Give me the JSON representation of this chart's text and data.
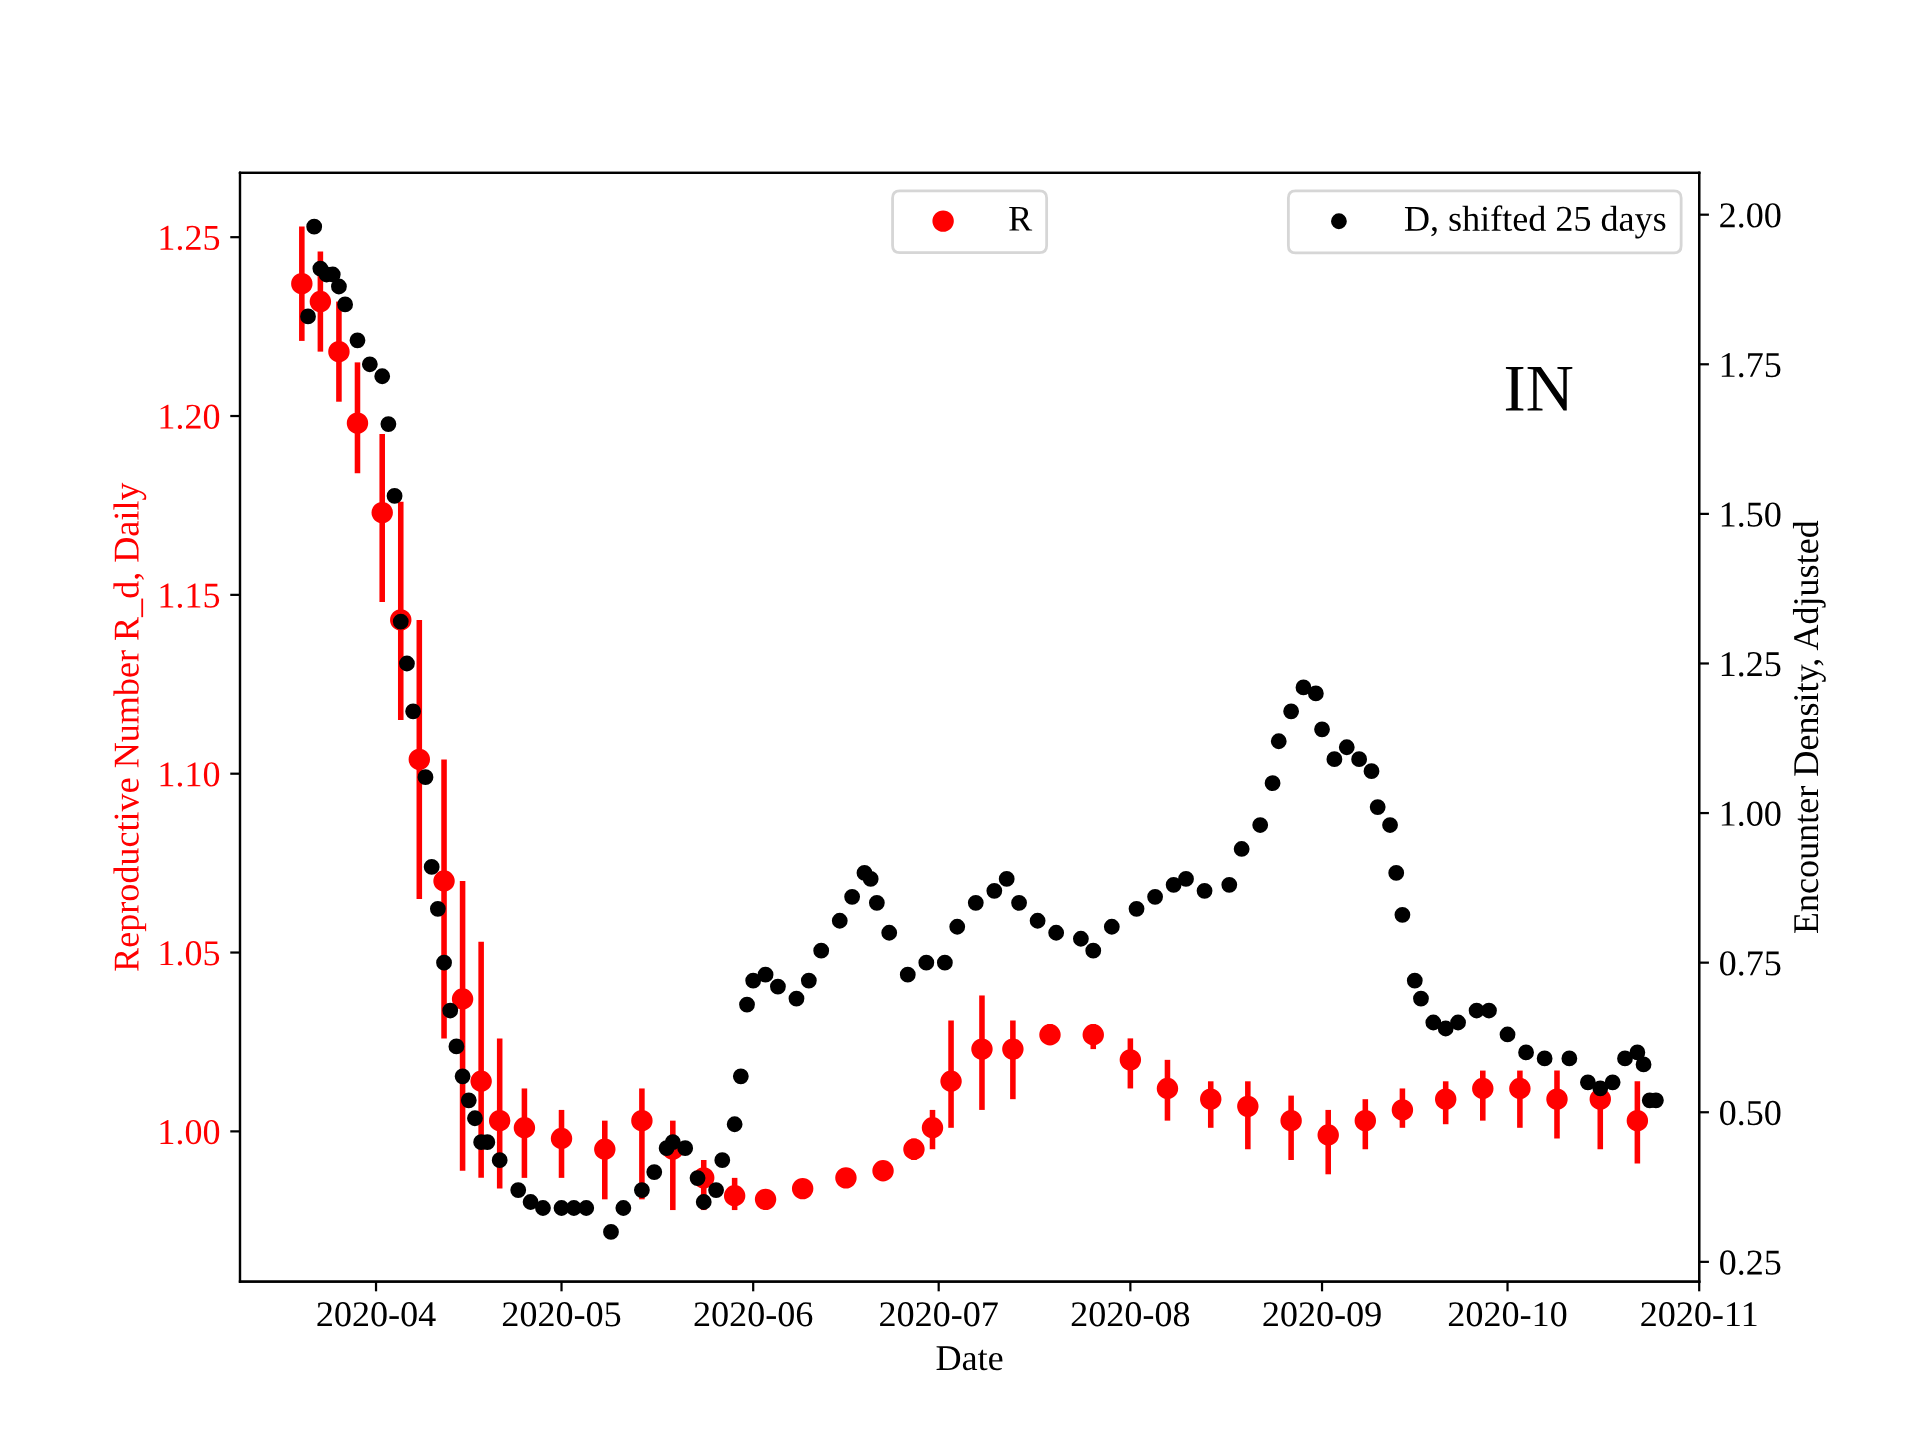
{
  "chart_data": {
    "type": "scatter",
    "xlabel": "Date",
    "ylabel": "Reproductive Number R_d, Daily",
    "y2label": "Encounter Density, Adjusted",
    "annotations": [
      "IN"
    ],
    "xlim": [
      "2020-03-10",
      "2020-11-01"
    ],
    "xticks": [
      "2020-04",
      "2020-05",
      "2020-06",
      "2020-07",
      "2020-08",
      "2020-09",
      "2020-10",
      "2020-11"
    ],
    "ylim": [
      0.958,
      1.268
    ],
    "yticks": [
      {
        "value": 1.0,
        "label": "1.00"
      },
      {
        "value": 1.05,
        "label": "1.05"
      },
      {
        "value": 1.1,
        "label": "1.10"
      },
      {
        "value": 1.15,
        "label": "1.15"
      },
      {
        "value": 1.2,
        "label": "1.20"
      },
      {
        "value": 1.25,
        "label": "1.25"
      }
    ],
    "y2lim": [
      0.217,
      2.07
    ],
    "y2ticks": [
      {
        "value": 0.25,
        "label": "0.25"
      },
      {
        "value": 0.5,
        "label": "0.50"
      },
      {
        "value": 0.75,
        "label": "0.75"
      },
      {
        "value": 1.0,
        "label": "1.00"
      },
      {
        "value": 1.25,
        "label": "1.25"
      },
      {
        "value": 1.5,
        "label": "1.50"
      },
      {
        "value": 1.75,
        "label": "1.75"
      },
      {
        "value": 2.0,
        "label": "2.00"
      }
    ],
    "marker": "circle",
    "legend": "top right",
    "grid": false,
    "series": [
      {
        "name": "R",
        "color": "#ff0000",
        "axis": "y",
        "x": [
          "2020-03-20",
          "2020-03-23",
          "2020-03-26",
          "2020-03-29",
          "2020-04-02",
          "2020-04-05",
          "2020-04-08",
          "2020-04-12",
          "2020-04-15",
          "2020-04-18",
          "2020-04-21",
          "2020-04-25",
          "2020-05-01",
          "2020-05-08",
          "2020-05-14",
          "2020-05-19",
          "2020-05-24",
          "2020-05-29",
          "2020-06-03",
          "2020-06-09",
          "2020-06-16",
          "2020-06-22",
          "2020-06-27",
          "2020-06-30",
          "2020-07-03",
          "2020-07-08",
          "2020-07-13",
          "2020-07-19",
          "2020-07-26",
          "2020-08-01",
          "2020-08-07",
          "2020-08-14",
          "2020-08-20",
          "2020-08-27",
          "2020-09-02",
          "2020-09-08",
          "2020-09-14",
          "2020-09-21",
          "2020-09-27",
          "2020-10-03",
          "2020-10-09",
          "2020-10-16",
          "2020-10-22"
        ],
        "values": [
          1.237,
          1.232,
          1.218,
          1.198,
          1.173,
          1.143,
          1.104,
          1.07,
          1.037,
          1.014,
          1.003,
          1.001,
          0.998,
          0.995,
          1.003,
          0.995,
          0.987,
          0.982,
          0.981,
          0.984,
          0.987,
          0.989,
          0.995,
          1.001,
          1.014,
          1.023,
          1.023,
          1.027,
          1.027,
          1.02,
          1.012,
          1.009,
          1.007,
          1.003,
          0.999,
          1.003,
          1.006,
          1.009,
          1.012,
          1.012,
          1.009,
          1.009,
          1.003
        ],
        "errors": [
          [
            1.221,
            1.253
          ],
          [
            1.218,
            1.246
          ],
          [
            1.204,
            1.232
          ],
          [
            1.184,
            1.215
          ],
          [
            1.148,
            1.195
          ],
          [
            1.115,
            1.176
          ],
          [
            1.065,
            1.143
          ],
          [
            1.026,
            1.104
          ],
          [
            0.989,
            1.07
          ],
          [
            0.987,
            1.053
          ],
          [
            0.984,
            1.026
          ],
          [
            0.987,
            1.012
          ],
          [
            0.987,
            1.006
          ],
          [
            0.981,
            1.003
          ],
          [
            0.981,
            1.012
          ],
          [
            0.978,
            1.003
          ],
          [
            0.978,
            0.992
          ],
          [
            0.978,
            0.987
          ],
          [
            0.98,
            0.983
          ],
          [
            0.982,
            0.986
          ],
          [
            0.985,
            0.988
          ],
          [
            0.988,
            0.991
          ],
          [
            0.992,
            0.998
          ],
          [
            0.995,
            1.006
          ],
          [
            1.001,
            1.031
          ],
          [
            1.006,
            1.038
          ],
          [
            1.009,
            1.031
          ],
          [
            1.025,
            1.03
          ],
          [
            1.023,
            1.03
          ],
          [
            1.012,
            1.026
          ],
          [
            1.003,
            1.02
          ],
          [
            1.001,
            1.014
          ],
          [
            0.995,
            1.014
          ],
          [
            0.992,
            1.01
          ],
          [
            0.988,
            1.006
          ],
          [
            0.995,
            1.009
          ],
          [
            1.001,
            1.012
          ],
          [
            1.002,
            1.014
          ],
          [
            1.003,
            1.017
          ],
          [
            1.001,
            1.017
          ],
          [
            0.998,
            1.017
          ],
          [
            0.995,
            1.014
          ],
          [
            0.991,
            1.014
          ]
        ]
      },
      {
        "name": "D, shifted 25 days",
        "color": "#000000",
        "axis": "y2",
        "x": [
          "2020-03-21",
          "2020-03-22",
          "2020-03-23",
          "2020-03-24",
          "2020-03-25",
          "2020-03-26",
          "2020-03-27",
          "2020-03-29",
          "2020-03-31",
          "2020-04-02",
          "2020-04-03",
          "2020-04-04",
          "2020-04-05",
          "2020-04-06",
          "2020-04-07",
          "2020-04-09",
          "2020-04-10",
          "2020-04-11",
          "2020-04-12",
          "2020-04-13",
          "2020-04-14",
          "2020-04-15",
          "2020-04-16",
          "2020-04-17",
          "2020-04-18",
          "2020-04-19",
          "2020-04-21",
          "2020-04-24",
          "2020-04-26",
          "2020-04-28",
          "2020-05-01",
          "2020-05-03",
          "2020-05-05",
          "2020-05-09",
          "2020-05-11",
          "2020-05-14",
          "2020-05-16",
          "2020-05-18",
          "2020-05-19",
          "2020-05-21",
          "2020-05-23",
          "2020-05-24",
          "2020-05-26",
          "2020-05-27",
          "2020-05-29",
          "2020-05-30",
          "2020-05-31",
          "2020-06-01",
          "2020-06-03",
          "2020-06-05",
          "2020-06-08",
          "2020-06-10",
          "2020-06-12",
          "2020-06-15",
          "2020-06-17",
          "2020-06-19",
          "2020-06-20",
          "2020-06-21",
          "2020-06-23",
          "2020-06-26",
          "2020-06-29",
          "2020-07-02",
          "2020-07-04",
          "2020-07-07",
          "2020-07-10",
          "2020-07-12",
          "2020-07-14",
          "2020-07-17",
          "2020-07-20",
          "2020-07-24",
          "2020-07-26",
          "2020-07-29",
          "2020-08-02",
          "2020-08-05",
          "2020-08-08",
          "2020-08-10",
          "2020-08-13",
          "2020-08-17",
          "2020-08-19",
          "2020-08-22",
          "2020-08-24",
          "2020-08-25",
          "2020-08-27",
          "2020-08-29",
          "2020-08-31",
          "2020-09-01",
          "2020-09-03",
          "2020-09-05",
          "2020-09-07",
          "2020-09-09",
          "2020-09-10",
          "2020-09-12",
          "2020-09-13",
          "2020-09-14",
          "2020-09-16",
          "2020-09-17",
          "2020-09-19",
          "2020-09-21",
          "2020-09-23",
          "2020-09-26",
          "2020-09-28",
          "2020-10-01",
          "2020-10-04",
          "2020-10-07",
          "2020-10-11",
          "2020-10-14",
          "2020-10-16",
          "2020-10-18",
          "2020-10-20",
          "2020-10-22",
          "2020-10-23",
          "2020-10-24",
          "2020-10-25"
        ],
        "values": [
          1.83,
          1.98,
          1.91,
          1.9,
          1.9,
          1.88,
          1.85,
          1.79,
          1.75,
          1.73,
          1.65,
          1.53,
          1.32,
          1.25,
          1.17,
          1.06,
          0.91,
          0.84,
          0.75,
          0.67,
          0.61,
          0.56,
          0.52,
          0.49,
          0.45,
          0.45,
          0.42,
          0.37,
          0.35,
          0.34,
          0.34,
          0.34,
          0.34,
          0.3,
          0.34,
          0.37,
          0.4,
          0.44,
          0.45,
          0.44,
          0.39,
          0.35,
          0.37,
          0.42,
          0.48,
          0.56,
          0.68,
          0.72,
          0.73,
          0.71,
          0.69,
          0.72,
          0.77,
          0.82,
          0.86,
          0.9,
          0.89,
          0.85,
          0.8,
          0.73,
          0.75,
          0.75,
          0.81,
          0.85,
          0.87,
          0.89,
          0.85,
          0.82,
          0.8,
          0.79,
          0.77,
          0.81,
          0.84,
          0.86,
          0.88,
          0.89,
          0.87,
          0.88,
          0.94,
          0.98,
          1.05,
          1.12,
          1.17,
          1.21,
          1.2,
          1.14,
          1.09,
          1.11,
          1.09,
          1.07,
          1.01,
          0.98,
          0.9,
          0.83,
          0.72,
          0.69,
          0.65,
          0.64,
          0.65,
          0.67,
          0.67,
          0.63,
          0.6,
          0.59,
          0.59,
          0.55,
          0.54,
          0.55,
          0.59,
          0.6,
          0.58,
          0.52,
          0.52
        ]
      }
    ]
  }
}
